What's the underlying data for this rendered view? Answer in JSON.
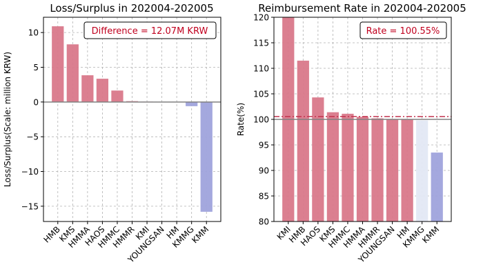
{
  "chart_data": [
    {
      "type": "bar",
      "title": "Loss/Surplus in 202004-202005",
      "ylabel": "Loss/Surplus(Scale: million KRW)",
      "xlabel": "",
      "categories": [
        "HMB",
        "KMS",
        "HMMA",
        "HAOS",
        "HMMC",
        "HMMR",
        "KMI",
        "YOUNGSAN",
        "HM",
        "KMMG",
        "KMM"
      ],
      "values": [
        10.9,
        8.3,
        3.85,
        3.35,
        1.65,
        0.12,
        0.05,
        0.0,
        0.0,
        -0.6,
        -15.8
      ],
      "bar_colors": [
        "#d9788a",
        "#d9788a",
        "#d9788a",
        "#d9788a",
        "#d9788a",
        "#d9788a",
        "#d9788a",
        "#d9788a",
        "#d9788a",
        "#9fa3dc",
        "#9fa3dc"
      ],
      "ylim": [
        -17.2,
        12.2
      ],
      "yticks": [
        -15,
        -10,
        -5,
        0,
        5,
        10
      ],
      "reference_line": 0,
      "annotation": "Difference = 12.07M KRW",
      "annotation_color": "#c0001e",
      "grid": true
    },
    {
      "type": "bar",
      "title": "Reimbursement Rate in 202004-202005",
      "ylabel": "Rate(%)",
      "xlabel": "",
      "categories": [
        "KMI",
        "HMB",
        "HAOS",
        "KMS",
        "HMMC",
        "HMMA",
        "HMMR",
        "YOUNGSAN",
        "HM",
        "KMMG",
        "KMM"
      ],
      "values": [
        120.0,
        111.5,
        104.3,
        101.4,
        101.1,
        100.5,
        100.2,
        100.0,
        100.0,
        99.8,
        93.5
      ],
      "bar_colors": [
        "#d9788a",
        "#d9788a",
        "#d9788a",
        "#d9788a",
        "#d9788a",
        "#d9788a",
        "#d9788a",
        "#d9788a",
        "#d9788a",
        "#e3e8f4",
        "#9fa3dc"
      ],
      "ylim": [
        80,
        120
      ],
      "yticks": [
        80,
        85,
        90,
        95,
        100,
        105,
        110,
        115,
        120
      ],
      "reference_line": 100,
      "average_line": 100.55,
      "annotation": "Rate = 100.55%",
      "annotation_color": "#c0001e",
      "grid": true
    }
  ]
}
